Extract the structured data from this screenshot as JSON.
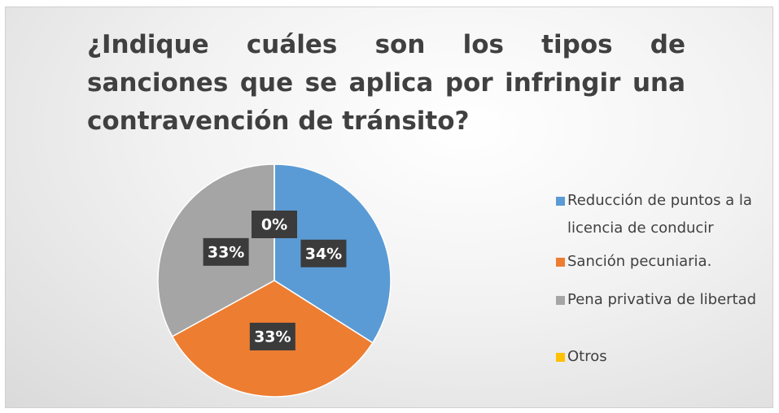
{
  "chart_data": {
    "type": "pie",
    "title": "¿Indique cuáles son los tipos de sanciones que se aplica por infringir una contravención de tránsito?",
    "categories": [
      "Reducción de puntos a la licencia de conducir",
      "Sanción pecuniaria.",
      "Pena privativa de libertad",
      "Otros"
    ],
    "values": [
      34,
      33,
      33,
      0
    ],
    "value_labels": [
      "34%",
      "33%",
      "33%",
      "0%"
    ],
    "colors": [
      "#5b9bd5",
      "#ed7d31",
      "#a5a5a5",
      "#ffc000"
    ],
    "legend": "right"
  }
}
